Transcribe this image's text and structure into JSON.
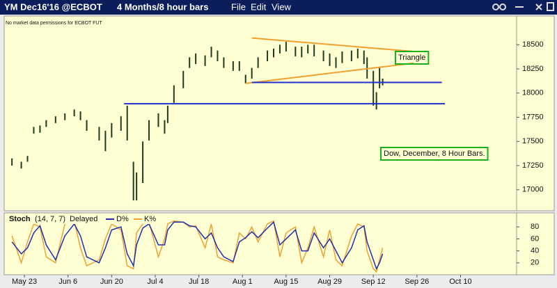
{
  "header": {
    "symbol": "YM Dec16'16 @ECBOT",
    "period": "4 Months/8 hour bars",
    "menu": [
      "File",
      "Edit",
      "View"
    ]
  },
  "chart_data": [
    {
      "type": "hlc",
      "subtitle": "No market data permissions for ECBOT FUT",
      "color": "#1e3a1e",
      "x": [
        -4,
        -1,
        1,
        3,
        5,
        7,
        10,
        13,
        16,
        18,
        20,
        24,
        26,
        28,
        31,
        33,
        35,
        36,
        38,
        40,
        43,
        45,
        46,
        48,
        51,
        53,
        55,
        58,
        60,
        62,
        64,
        67,
        69,
        71,
        73,
        75,
        78,
        80,
        82,
        84,
        87,
        89,
        91,
        93,
        96,
        98,
        100,
        102,
        105,
        107,
        109,
        110,
        112,
        113,
        114,
        115
      ],
      "high": [
        17325,
        17290,
        17350,
        17650,
        17665,
        17720,
        17760,
        17790,
        17830,
        17810,
        17720,
        17650,
        17610,
        17690,
        17760,
        17870,
        17290,
        17180,
        17500,
        17720,
        17790,
        17720,
        17870,
        18080,
        18230,
        18370,
        18410,
        18390,
        18480,
        18440,
        18370,
        18330,
        18330,
        18190,
        18260,
        18370,
        18440,
        18460,
        18500,
        18530,
        18480,
        18480,
        18500,
        18500,
        18440,
        18410,
        18370,
        18430,
        18440,
        18460,
        18440,
        18370,
        18230,
        18010,
        18260,
        18150
      ],
      "low": [
        17250,
        17220,
        17290,
        17580,
        17590,
        17650,
        17690,
        17720,
        17760,
        17720,
        17610,
        17510,
        17400,
        17540,
        17610,
        17510,
        16890,
        16890,
        17070,
        17510,
        17650,
        17580,
        17690,
        17900,
        18050,
        18260,
        18300,
        18280,
        18370,
        18330,
        18260,
        18230,
        18230,
        18100,
        18150,
        18260,
        18330,
        18370,
        18410,
        18430,
        18380,
        18370,
        18410,
        18380,
        18330,
        18280,
        18260,
        18310,
        18330,
        18360,
        18300,
        18150,
        17870,
        17830,
        18050,
        18080
      ],
      "xlim": [
        -5.6,
        158
      ],
      "ylim": [
        16790,
        18790
      ],
      "yticks": [
        17000,
        17250,
        17500,
        17750,
        18000,
        18250,
        18500
      ],
      "lines": [
        {
          "color": "#f0a030",
          "x": [
            73,
            125
          ],
          "y": [
            18570,
            18430
          ]
        },
        {
          "color": "#f0a030",
          "x": [
            71,
            125
          ],
          "y": [
            18100,
            18310
          ]
        },
        {
          "color": "#1f2fd0",
          "x": [
            73,
            134
          ],
          "y": [
            18110,
            18110
          ]
        },
        {
          "color": "#1f2fd0",
          "x": [
            32,
            135
          ],
          "y": [
            17890,
            17890
          ]
        }
      ],
      "annotations": [
        "Triangle",
        "Dow, December, 8 Hour Bars."
      ]
    },
    {
      "type": "line",
      "title": "Stoch",
      "params": "(14, 7, 7)",
      "note": "Delayed",
      "x": [
        -4,
        -1,
        1,
        3,
        5,
        7,
        10,
        13,
        16,
        18,
        20,
        24,
        26,
        28,
        31,
        33,
        35,
        36,
        38,
        40,
        43,
        45,
        46,
        48,
        51,
        53,
        55,
        58,
        60,
        62,
        64,
        67,
        69,
        71,
        73,
        75,
        78,
        80,
        82,
        84,
        87,
        89,
        91,
        93,
        96,
        98,
        100,
        102,
        105,
        107,
        109,
        110,
        112,
        113,
        114,
        115
      ],
      "series": [
        {
          "name": "D%",
          "color": "#1f2fb0",
          "values": [
            55,
            35,
            45,
            70,
            82,
            50,
            25,
            65,
            85,
            65,
            30,
            20,
            45,
            75,
            80,
            35,
            15,
            50,
            78,
            85,
            50,
            50,
            75,
            88,
            88,
            82,
            80,
            60,
            70,
            45,
            30,
            22,
            55,
            62,
            72,
            62,
            78,
            88,
            50,
            60,
            75,
            40,
            40,
            70,
            45,
            60,
            40,
            20,
            45,
            75,
            82,
            55,
            25,
            10,
            20,
            35
          ]
        },
        {
          "name": "K%",
          "color": "#f0a030",
          "values": [
            65,
            20,
            55,
            85,
            80,
            30,
            20,
            85,
            90,
            45,
            15,
            25,
            60,
            85,
            75,
            15,
            10,
            70,
            85,
            88,
            30,
            60,
            85,
            90,
            88,
            80,
            82,
            45,
            85,
            30,
            25,
            20,
            70,
            60,
            80,
            55,
            85,
            90,
            30,
            70,
            80,
            20,
            45,
            80,
            30,
            75,
            25,
            15,
            65,
            85,
            80,
            40,
            10,
            5,
            25,
            45
          ]
        }
      ],
      "xlim": [
        -5.6,
        158
      ],
      "ylim": [
        0,
        100
      ],
      "yticks": [
        20,
        40,
        60,
        80
      ],
      "xticks": [
        {
          "value": 0,
          "label": "May 23"
        },
        {
          "value": 14,
          "label": "Jun 6"
        },
        {
          "value": 28,
          "label": "Jun 20"
        },
        {
          "value": 42,
          "label": "Jul 4"
        },
        {
          "value": 56,
          "label": "Jul 18"
        },
        {
          "value": 70,
          "label": "Aug 1"
        },
        {
          "value": 84,
          "label": "Aug 15"
        },
        {
          "value": 98,
          "label": "Aug 29"
        },
        {
          "value": 112,
          "label": "Sep 12"
        },
        {
          "value": 126,
          "label": "Sep 26"
        },
        {
          "value": 140,
          "label": "Oct 10"
        }
      ]
    }
  ]
}
